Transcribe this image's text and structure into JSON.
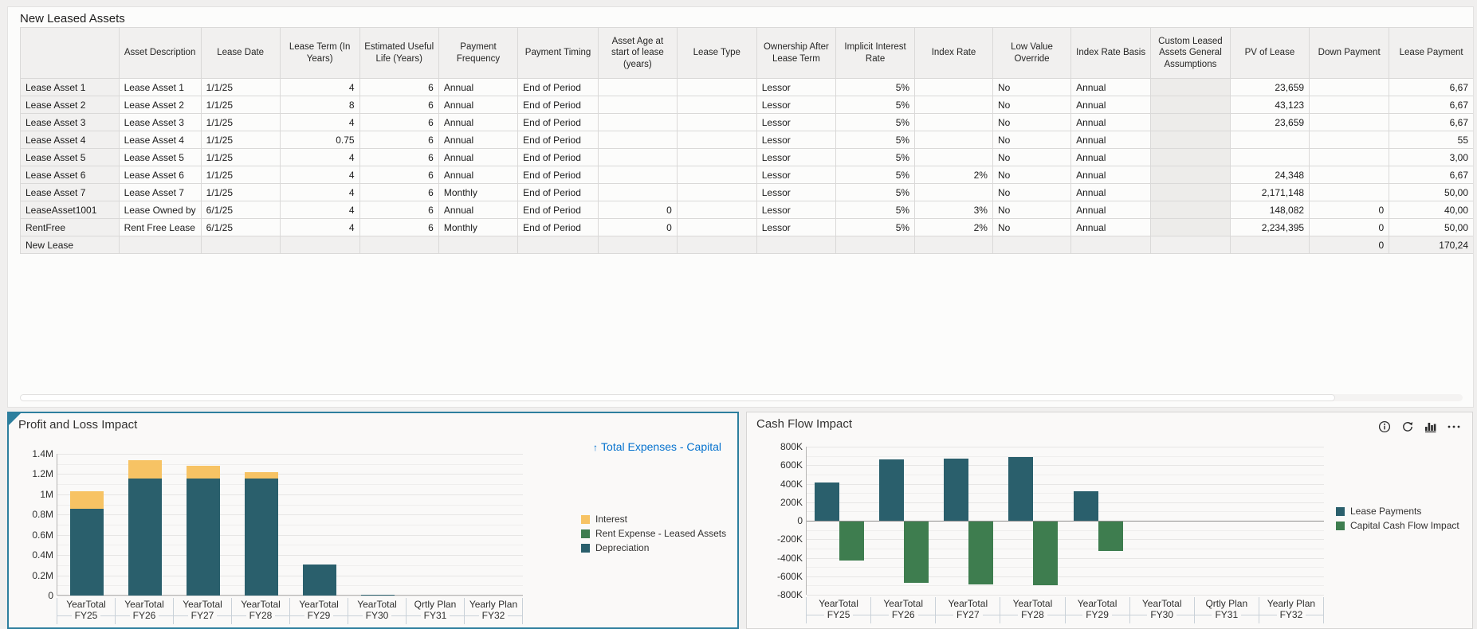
{
  "table": {
    "title": "New Leased Assets",
    "columns": [
      "",
      "Asset Description",
      "Lease Date",
      "Lease Term (In Years)",
      "Estimated Useful Life (Years)",
      "Payment Frequency",
      "Payment Timing",
      "Asset Age at start of lease (years)",
      "Lease Type",
      "Ownership After Lease Term",
      "Implicit Interest Rate",
      "Index Rate",
      "Low Value Override",
      "Index Rate Basis",
      "Custom Leased Assets General Assumptions",
      "PV of Lease",
      "Down Payment",
      "Lease Payment"
    ],
    "rows": [
      {
        "header": "Lease Asset 1",
        "cells": [
          "Lease Asset 1",
          "1/1/25",
          "4",
          "6",
          "Annual",
          "End of Period",
          "",
          "",
          "Lessor",
          "5%",
          "",
          "No",
          "Annual",
          "",
          "23,659",
          "",
          "6,67"
        ]
      },
      {
        "header": "Lease Asset 2",
        "cells": [
          "Lease Asset 2",
          "1/1/25",
          "8",
          "6",
          "Annual",
          "End of Period",
          "",
          "",
          "Lessor",
          "5%",
          "",
          "No",
          "Annual",
          "",
          "43,123",
          "",
          "6,67"
        ]
      },
      {
        "header": "Lease Asset 3",
        "cells": [
          "Lease Asset 3",
          "1/1/25",
          "4",
          "6",
          "Annual",
          "End of Period",
          "",
          "",
          "Lessor",
          "5%",
          "",
          "No",
          "Annual",
          "",
          "23,659",
          "",
          "6,67"
        ]
      },
      {
        "header": "Lease Asset 4",
        "cells": [
          "Lease Asset 4",
          "1/1/25",
          "0.75",
          "6",
          "Annual",
          "End of Period",
          "",
          "",
          "Lessor",
          "5%",
          "",
          "No",
          "Annual",
          "",
          "",
          "",
          "55"
        ]
      },
      {
        "header": "Lease Asset 5",
        "cells": [
          "Lease Asset 5",
          "1/1/25",
          "4",
          "6",
          "Annual",
          "End of Period",
          "",
          "",
          "Lessor",
          "5%",
          "",
          "No",
          "Annual",
          "",
          "",
          "",
          "3,00"
        ]
      },
      {
        "header": "Lease Asset 6",
        "cells": [
          "Lease Asset 6",
          "1/1/25",
          "4",
          "6",
          "Annual",
          "End of Period",
          "",
          "",
          "Lessor",
          "5%",
          "2%",
          "No",
          "Annual",
          "",
          "24,348",
          "",
          "6,67"
        ]
      },
      {
        "header": "Lease Asset 7",
        "cells": [
          "Lease Asset 7",
          "1/1/25",
          "4",
          "6",
          "Monthly",
          "End of Period",
          "",
          "",
          "Lessor",
          "5%",
          "",
          "No",
          "Annual",
          "",
          "2,171,148",
          "",
          "50,00"
        ]
      },
      {
        "header": "LeaseAsset1001",
        "cells": [
          "Lease Owned by",
          "6/1/25",
          "4",
          "6",
          "Annual",
          "End of Period",
          "0",
          "",
          "Lessor",
          "5%",
          "3%",
          "No",
          "Annual",
          "",
          "148,082",
          "0",
          "40,00"
        ]
      },
      {
        "header": "RentFree",
        "cells": [
          "Rent Free Lease",
          "6/1/25",
          "4",
          "6",
          "Monthly",
          "End of Period",
          "0",
          "",
          "Lessor",
          "5%",
          "2%",
          "No",
          "Annual",
          "",
          "2,234,395",
          "0",
          "50,00"
        ]
      },
      {
        "header": "New Lease",
        "readonly": true,
        "cells": [
          "",
          "",
          "",
          "",
          "",
          "",
          "",
          "",
          "",
          "",
          "",
          "",
          "",
          "",
          "",
          "0",
          "170,24"
        ]
      }
    ]
  },
  "chart_data": [
    {
      "id": "pnl",
      "type": "bar",
      "stacked": true,
      "title": "Profit and Loss Impact",
      "drill_link": "Total Expenses - Capital",
      "categories": [
        {
          "line1": "YearTotal",
          "line2": "FY25"
        },
        {
          "line1": "YearTotal",
          "line2": "FY26"
        },
        {
          "line1": "YearTotal",
          "line2": "FY27"
        },
        {
          "line1": "YearTotal",
          "line2": "FY28"
        },
        {
          "line1": "YearTotal",
          "line2": "FY29"
        },
        {
          "line1": "YearTotal",
          "line2": "FY30"
        },
        {
          "line1": "Qrtly Plan",
          "line2": "FY31"
        },
        {
          "line1": "Yearly Plan",
          "line2": "FY32"
        }
      ],
      "series": [
        {
          "name": "Interest",
          "color": "#F7C364",
          "values": [
            170000,
            175000,
            120000,
            60000,
            0,
            0,
            0,
            0
          ]
        },
        {
          "name": "Rent Expense - Leased Assets",
          "color": "#3E7D4F",
          "values": [
            0,
            0,
            0,
            0,
            0,
            0,
            0,
            0
          ]
        },
        {
          "name": "Depreciation",
          "color": "#2A5F6C",
          "values": [
            860000,
            1160000,
            1160000,
            1160000,
            305000,
            10000,
            0,
            0
          ]
        }
      ],
      "stack_order": [
        "Depreciation",
        "Interest"
      ],
      "ylim": [
        0,
        1400000
      ],
      "yticks": [
        {
          "label": "1.4M",
          "value": 1400000
        },
        {
          "label": "1.2M",
          "value": 1200000
        },
        {
          "label": "1M",
          "value": 1000000
        },
        {
          "label": "0.8M",
          "value": 800000
        },
        {
          "label": "0.6M",
          "value": 600000
        },
        {
          "label": "0.4M",
          "value": 400000
        },
        {
          "label": "0.2M",
          "value": 200000
        },
        {
          "label": "0",
          "value": 0
        }
      ],
      "minor_step": 100000,
      "legend_position": "right",
      "grid": true
    },
    {
      "id": "cashflow",
      "type": "bar",
      "stacked": false,
      "title": "Cash Flow Impact",
      "categories": [
        {
          "line1": "YearTotal",
          "line2": "FY25"
        },
        {
          "line1": "YearTotal",
          "line2": "FY26"
        },
        {
          "line1": "YearTotal",
          "line2": "FY27"
        },
        {
          "line1": "YearTotal",
          "line2": "FY28"
        },
        {
          "line1": "YearTotal",
          "line2": "FY29"
        },
        {
          "line1": "YearTotal",
          "line2": "FY30"
        },
        {
          "line1": "Qrtly Plan",
          "line2": "FY31"
        },
        {
          "line1": "Yearly Plan",
          "line2": "FY32"
        }
      ],
      "series": [
        {
          "name": "Lease Payments",
          "color": "#2A5F6C",
          "values": [
            410000,
            660000,
            675000,
            690000,
            315000,
            0,
            0,
            0
          ]
        },
        {
          "name": "Capital Cash Flow Impact",
          "color": "#3E7D4F",
          "values": [
            -420000,
            -660000,
            -680000,
            -690000,
            -320000,
            0,
            0,
            0
          ]
        }
      ],
      "ylim": [
        -800000,
        800000
      ],
      "yticks": [
        {
          "label": "800K",
          "value": 800000
        },
        {
          "label": "600K",
          "value": 600000
        },
        {
          "label": "400K",
          "value": 400000
        },
        {
          "label": "200K",
          "value": 200000
        },
        {
          "label": "0",
          "value": 0
        },
        {
          "label": "-200K",
          "value": -200000
        },
        {
          "label": "-400K",
          "value": -400000
        },
        {
          "label": "-600K",
          "value": -600000
        },
        {
          "label": "-800K",
          "value": -800000
        }
      ],
      "minor_step": 100000,
      "legend_position": "right",
      "grid": true,
      "panel_icons": [
        "info",
        "refresh",
        "chart-type",
        "more-actions"
      ]
    }
  ],
  "colors": {
    "teal": "#2A5F6C",
    "yellow": "#F7C364",
    "green": "#3E7D4F",
    "link_blue": "#0572ce",
    "selected_border": "#2d7f9e"
  }
}
